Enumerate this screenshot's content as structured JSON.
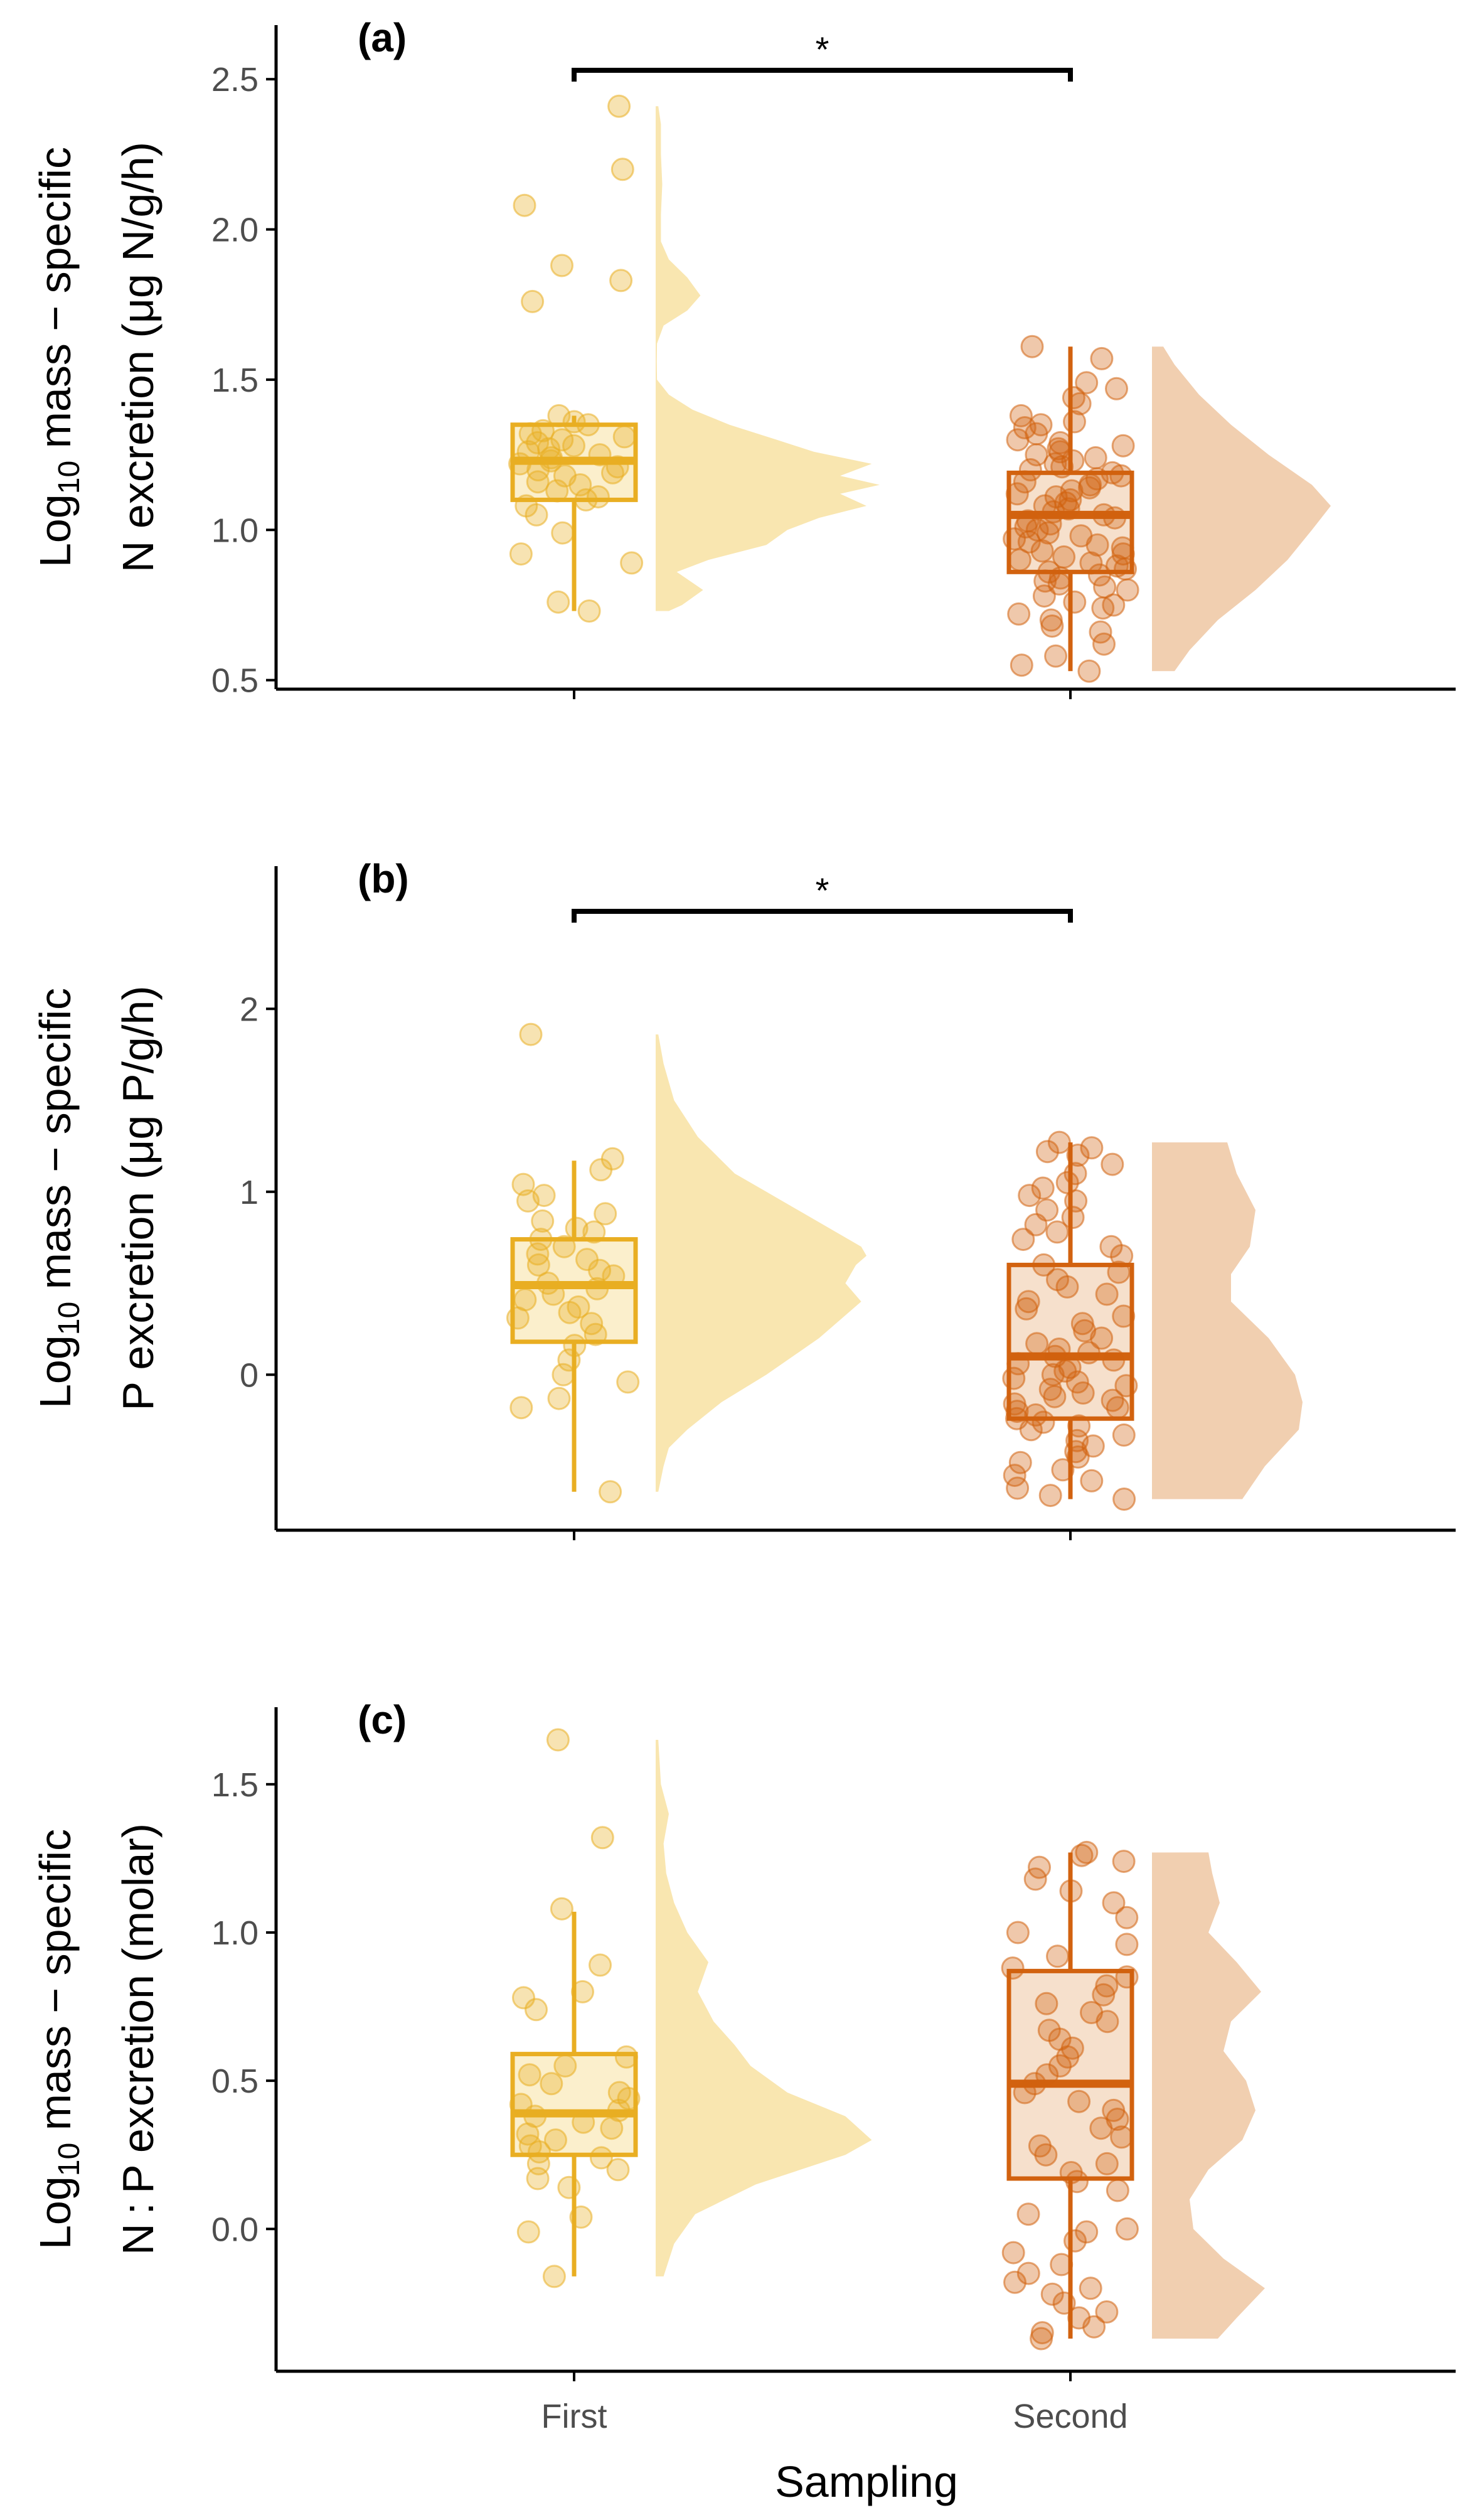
{
  "colors": {
    "first": "#E9AE22",
    "second": "#D2620F",
    "first_fill": "#F9E6B0",
    "second_fill": "#F1CFB0",
    "axis": "#000000",
    "tick_text": "#4D4D4D"
  },
  "xlabel": "Sampling",
  "x_categories": [
    "First",
    "Second"
  ],
  "chart_data": [
    {
      "type": "raincloud",
      "panel_label": "(a)",
      "ylabel_line1": "mass − specific",
      "ylabel_log_main": "Log",
      "ylabel_log_sub": "10",
      "ylabel_line2": "N excretion (μg N/g/h)",
      "ylim": [
        0.47,
        2.68
      ],
      "yticks": [
        0.5,
        1.0,
        1.5,
        2.0,
        2.5
      ],
      "tick_labels": [
        "0.5",
        "1.0",
        "1.5",
        "2.0",
        "2.5"
      ],
      "significance": "*",
      "groups": [
        {
          "name": "First",
          "box": {
            "min": 0.73,
            "q1": 1.1,
            "median": 1.23,
            "q3": 1.35,
            "max": 1.38
          },
          "points": [
            2.41,
            2.2,
            2.08,
            1.88,
            1.83,
            1.76,
            1.38,
            1.36,
            1.35,
            1.33,
            1.32,
            1.31,
            1.3,
            1.29,
            1.28,
            1.27,
            1.26,
            1.25,
            1.24,
            1.23,
            1.22,
            1.21,
            1.2,
            1.19,
            1.18,
            1.16,
            1.15,
            1.13,
            1.11,
            1.1,
            1.08,
            1.05,
            0.99,
            0.92,
            0.89,
            0.76,
            0.73
          ],
          "density_x": [
            0.73,
            0.75,
            0.8,
            0.86,
            0.9,
            0.95,
            1.0,
            1.04,
            1.08,
            1.12,
            1.15,
            1.18,
            1.22,
            1.26,
            1.3,
            1.35,
            1.4,
            1.45,
            1.5,
            1.56,
            1.62,
            1.68,
            1.73,
            1.78,
            1.84,
            1.9,
            1.96,
            2.05,
            2.15,
            2.25,
            2.35,
            2.41
          ],
          "density_y": [
            0.05,
            0.1,
            0.18,
            0.08,
            0.2,
            0.42,
            0.5,
            0.62,
            0.8,
            0.7,
            0.85,
            0.7,
            0.82,
            0.6,
            0.46,
            0.28,
            0.14,
            0.05,
            0.005,
            0.004,
            0.005,
            0.03,
            0.12,
            0.17,
            0.12,
            0.05,
            0.02,
            0.02,
            0.025,
            0.02,
            0.02,
            0.01
          ]
        },
        {
          "name": "Second",
          "box": {
            "min": 0.53,
            "q1": 0.86,
            "median": 1.05,
            "q3": 1.19,
            "max": 1.61
          },
          "points": [
            1.61,
            1.57,
            1.49,
            1.47,
            1.44,
            1.42,
            1.38,
            1.36,
            1.35,
            1.34,
            1.32,
            1.3,
            1.29,
            1.28,
            1.27,
            1.26,
            1.25,
            1.24,
            1.23,
            1.22,
            1.21,
            1.2,
            1.19,
            1.18,
            1.17,
            1.16,
            1.15,
            1.14,
            1.13,
            1.12,
            1.11,
            1.1,
            1.09,
            1.08,
            1.07,
            1.06,
            1.05,
            1.04,
            1.03,
            1.02,
            1.01,
            1.0,
            0.99,
            0.98,
            0.97,
            0.96,
            0.95,
            0.94,
            0.93,
            0.92,
            0.91,
            0.9,
            0.89,
            0.88,
            0.87,
            0.86,
            0.85,
            0.84,
            0.83,
            0.82,
            0.81,
            0.8,
            0.78,
            0.76,
            0.75,
            0.74,
            0.72,
            0.7,
            0.68,
            0.66,
            0.62,
            0.58,
            0.55,
            0.53
          ],
          "density_x": [
            0.53,
            0.6,
            0.7,
            0.8,
            0.9,
            1.0,
            1.08,
            1.15,
            1.25,
            1.35,
            1.45,
            1.55,
            1.61
          ],
          "density_y": [
            0.12,
            0.2,
            0.35,
            0.55,
            0.72,
            0.85,
            0.95,
            0.85,
            0.62,
            0.42,
            0.25,
            0.12,
            0.06
          ]
        }
      ]
    },
    {
      "type": "raincloud",
      "panel_label": "(b)",
      "ylabel_line1": "mass − specific",
      "ylabel_log_main": "Log",
      "ylabel_log_sub": "10",
      "ylabel_line2": "P excretion (μg P/g/h)",
      "ylim": [
        -0.85,
        2.78
      ],
      "yticks": [
        0,
        1,
        2
      ],
      "tick_labels": [
        "0",
        "1",
        "2"
      ],
      "significance": "*",
      "groups": [
        {
          "name": "First",
          "box": {
            "min": -0.64,
            "q1": 0.18,
            "median": 0.49,
            "q3": 0.74,
            "max": 1.17
          },
          "points": [
            1.86,
            1.18,
            1.12,
            1.04,
            0.98,
            0.95,
            0.88,
            0.84,
            0.8,
            0.78,
            0.74,
            0.7,
            0.66,
            0.63,
            0.6,
            0.57,
            0.54,
            0.5,
            0.47,
            0.44,
            0.41,
            0.37,
            0.34,
            0.31,
            0.28,
            0.22,
            0.16,
            0.08,
            0.0,
            -0.04,
            -0.13,
            -0.18,
            -0.64
          ],
          "density_x": [
            -0.64,
            -0.5,
            -0.4,
            -0.3,
            -0.15,
            0.0,
            0.2,
            0.4,
            0.5,
            0.6,
            0.65,
            0.7,
            0.85,
            1.0,
            1.1,
            1.3,
            1.5,
            1.7,
            1.86
          ],
          "density_y": [
            0.01,
            0.03,
            0.05,
            0.12,
            0.25,
            0.42,
            0.62,
            0.78,
            0.72,
            0.76,
            0.8,
            0.78,
            0.6,
            0.42,
            0.3,
            0.16,
            0.07,
            0.03,
            0.01
          ]
        },
        {
          "name": "Second",
          "box": {
            "min": -0.68,
            "q1": -0.24,
            "median": 0.1,
            "q3": 0.6,
            "max": 1.27
          },
          "points": [
            1.27,
            1.24,
            1.22,
            1.2,
            1.15,
            1.1,
            1.05,
            1.02,
            0.98,
            0.95,
            0.9,
            0.86,
            0.82,
            0.78,
            0.74,
            0.7,
            0.65,
            0.6,
            0.56,
            0.52,
            0.48,
            0.44,
            0.4,
            0.36,
            0.32,
            0.28,
            0.24,
            0.2,
            0.17,
            0.14,
            0.12,
            0.1,
            0.08,
            0.06,
            0.04,
            0.02,
            0.0,
            -0.02,
            -0.04,
            -0.06,
            -0.08,
            -0.1,
            -0.12,
            -0.14,
            -0.16,
            -0.18,
            -0.2,
            -0.22,
            -0.24,
            -0.26,
            -0.28,
            -0.3,
            -0.33,
            -0.36,
            -0.39,
            -0.42,
            -0.45,
            -0.48,
            -0.52,
            -0.55,
            -0.58,
            -0.62,
            -0.66,
            -0.68
          ],
          "density_x": [
            -0.68,
            -0.5,
            -0.3,
            -0.15,
            0.0,
            0.2,
            0.4,
            0.55,
            0.7,
            0.9,
            1.1,
            1.27
          ],
          "density_y": [
            0.48,
            0.6,
            0.78,
            0.8,
            0.76,
            0.62,
            0.42,
            0.42,
            0.52,
            0.55,
            0.45,
            0.4
          ]
        }
      ]
    },
    {
      "type": "raincloud",
      "panel_label": "(c)",
      "ylabel_line1": "mass − specific",
      "ylabel_log_main": "Log",
      "ylabel_log_sub": "10",
      "ylabel_line2": "N : P excretion (molar)",
      "ylim": [
        -0.48,
        1.76
      ],
      "yticks": [
        0.0,
        0.5,
        1.0,
        1.5
      ],
      "tick_labels": [
        "0.0",
        "0.5",
        "1.0",
        "1.5"
      ],
      "significance": "",
      "groups": [
        {
          "name": "First",
          "box": {
            "min": -0.16,
            "q1": 0.25,
            "median": 0.39,
            "q3": 0.59,
            "max": 1.07
          },
          "points": [
            1.65,
            1.32,
            1.08,
            0.89,
            0.8,
            0.78,
            0.74,
            0.58,
            0.55,
            0.52,
            0.49,
            0.46,
            0.44,
            0.42,
            0.4,
            0.38,
            0.36,
            0.34,
            0.32,
            0.3,
            0.28,
            0.26,
            0.24,
            0.22,
            0.2,
            0.17,
            0.14,
            0.04,
            -0.01,
            -0.16
          ],
          "density_x": [
            -0.16,
            -0.05,
            0.05,
            0.15,
            0.25,
            0.3,
            0.38,
            0.46,
            0.55,
            0.62,
            0.7,
            0.8,
            0.9,
            1.0,
            1.1,
            1.2,
            1.3,
            1.4,
            1.5,
            1.65
          ],
          "density_y": [
            0.03,
            0.07,
            0.15,
            0.38,
            0.72,
            0.82,
            0.72,
            0.5,
            0.36,
            0.3,
            0.22,
            0.16,
            0.2,
            0.12,
            0.07,
            0.04,
            0.03,
            0.05,
            0.02,
            0.01
          ]
        },
        {
          "name": "Second",
          "box": {
            "min": -0.37,
            "q1": 0.17,
            "median": 0.49,
            "q3": 0.87,
            "max": 1.27
          },
          "points": [
            1.27,
            1.26,
            1.24,
            1.22,
            1.18,
            1.14,
            1.1,
            1.05,
            1.0,
            0.96,
            0.92,
            0.88,
            0.85,
            0.82,
            0.79,
            0.76,
            0.73,
            0.7,
            0.67,
            0.64,
            0.61,
            0.58,
            0.55,
            0.52,
            0.49,
            0.46,
            0.43,
            0.4,
            0.37,
            0.34,
            0.31,
            0.28,
            0.25,
            0.22,
            0.19,
            0.16,
            0.13,
            0.05,
            0.0,
            -0.01,
            -0.04,
            -0.08,
            -0.12,
            -0.15,
            -0.18,
            -0.2,
            -0.22,
            -0.25,
            -0.28,
            -0.3,
            -0.33,
            -0.35,
            -0.37
          ],
          "density_x": [
            -0.37,
            -0.3,
            -0.2,
            -0.1,
            0.0,
            0.1,
            0.2,
            0.3,
            0.4,
            0.5,
            0.6,
            0.7,
            0.8,
            0.9,
            1.0,
            1.1,
            1.2,
            1.27
          ],
          "density_y": [
            0.35,
            0.45,
            0.6,
            0.38,
            0.22,
            0.2,
            0.3,
            0.48,
            0.55,
            0.5,
            0.38,
            0.42,
            0.58,
            0.45,
            0.3,
            0.36,
            0.32,
            0.3
          ]
        }
      ]
    }
  ]
}
